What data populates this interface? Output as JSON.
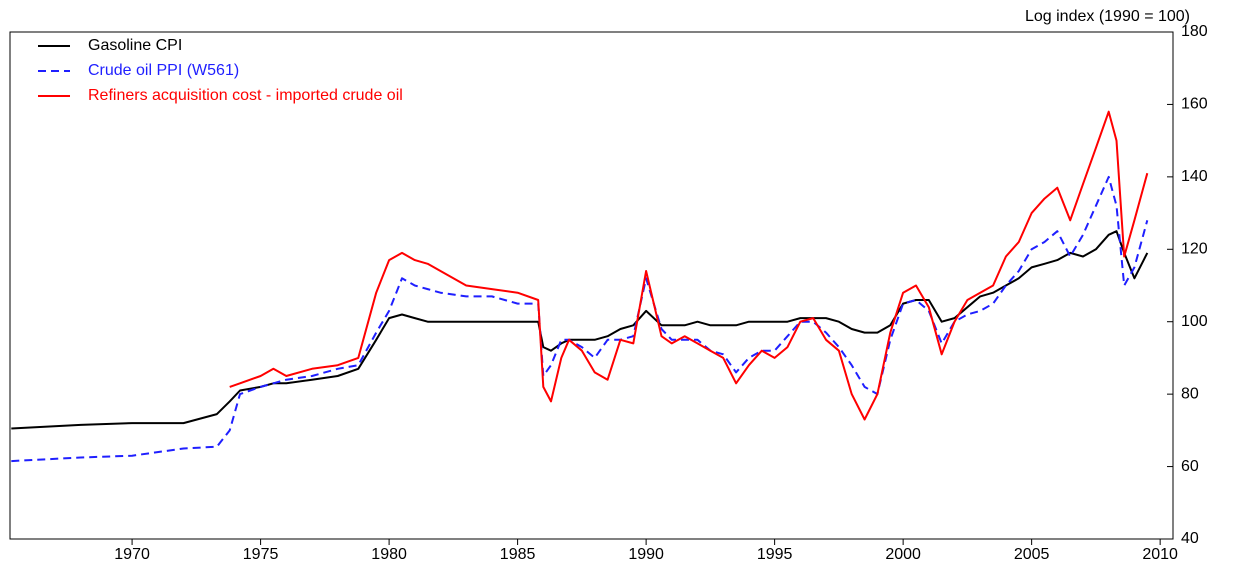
{
  "chart_data": {
    "type": "line",
    "y_label": "Log index (1990 = 100)",
    "x": [
      1965.3,
      1968,
      1970,
      1972,
      1973.3,
      1973.8,
      1974.2,
      1975,
      1975.5,
      1976,
      1977,
      1978,
      1978.8,
      1979.5,
      1980,
      1980.5,
      1981,
      1981.5,
      1982,
      1983,
      1984,
      1985,
      1985.8,
      1986,
      1986.3,
      1986.7,
      1987,
      1987.5,
      1988,
      1988.5,
      1989,
      1989.5,
      1990,
      1990.6,
      1991,
      1991.5,
      1992,
      1992.5,
      1993,
      1993.5,
      1994,
      1994.5,
      1995,
      1995.5,
      1996,
      1996.5,
      1997,
      1997.5,
      1998,
      1998.5,
      1999,
      1999.5,
      2000,
      2000.5,
      2001,
      2001.5,
      2002,
      2002.5,
      2003,
      2003.5,
      2004,
      2004.5,
      2005,
      2005.5,
      2006,
      2006.5,
      2007,
      2007.5,
      2008,
      2008.3,
      2008.6,
      2009,
      2009.5
    ],
    "series": [
      {
        "name": "Gasoline CPI",
        "color": "#000000",
        "dash": false,
        "values": [
          70.5,
          71.5,
          72,
          72,
          74.5,
          78,
          81,
          82,
          83,
          83,
          84,
          85,
          87,
          95,
          101,
          102,
          101,
          100,
          100,
          100,
          100,
          100,
          100,
          93,
          92,
          94,
          95,
          95,
          95,
          96,
          98,
          99,
          103,
          99,
          99,
          99,
          100,
          99,
          99,
          99,
          100,
          100,
          100,
          100,
          101,
          101,
          101,
          100,
          98,
          97,
          97,
          99,
          105,
          106,
          106,
          100,
          101,
          104,
          107,
          108,
          110,
          112,
          115,
          116,
          117,
          119,
          118,
          120,
          124,
          125,
          119,
          112,
          119
        ]
      },
      {
        "name": "Crude oil PPI (W561)",
        "color": "#1f1fff",
        "dash": true,
        "values": [
          61.5,
          62.5,
          63,
          65,
          65.5,
          70,
          80,
          82,
          83,
          84,
          85,
          87,
          88,
          97,
          103,
          112,
          110,
          109,
          108,
          107,
          107,
          105,
          105,
          85,
          88,
          95,
          95,
          93,
          90,
          95,
          95,
          96,
          112,
          98,
          95,
          95,
          95,
          92,
          91,
          86,
          90,
          92,
          92,
          96,
          100,
          100,
          97,
          93,
          88,
          82,
          80,
          95,
          105,
          106,
          103,
          94,
          100,
          102,
          103,
          105,
          110,
          114,
          120,
          122,
          125,
          118,
          124,
          132,
          140,
          132,
          110,
          115,
          128
        ]
      },
      {
        "name": "Refiners acquisition cost - imported crude oil",
        "color": "#ff0000",
        "dash": false,
        "values": [
          null,
          null,
          null,
          null,
          null,
          82,
          83,
          85,
          87,
          85,
          87,
          88,
          90,
          108,
          117,
          119,
          117,
          116,
          114,
          110,
          109,
          108,
          106,
          82,
          78,
          90,
          95,
          92,
          86,
          84,
          95,
          94,
          114,
          96,
          94,
          96,
          94,
          92,
          90,
          83,
          88,
          92,
          90,
          93,
          100,
          101,
          95,
          92,
          80,
          73,
          80,
          97,
          108,
          110,
          104,
          91,
          100,
          106,
          108,
          110,
          118,
          122,
          130,
          134,
          137,
          128,
          138,
          148,
          158,
          150,
          118,
          128,
          141
        ]
      }
    ],
    "xlim": [
      1965.25,
      2010.5
    ],
    "xticks": [
      1970,
      1975,
      1980,
      1985,
      1990,
      1995,
      2000,
      2005,
      2010
    ],
    "ylim": [
      40,
      180
    ],
    "yticks": [
      40,
      60,
      80,
      100,
      120,
      140,
      160,
      180
    ],
    "y_axis_side": "right",
    "grid": false
  }
}
